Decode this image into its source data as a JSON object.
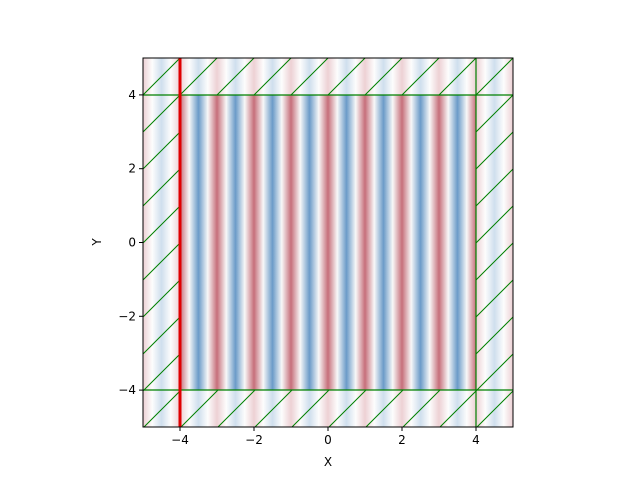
{
  "chart_data": {
    "type": "field",
    "xlabel": "X",
    "ylabel": "Y",
    "xlim": [
      -5,
      5
    ],
    "ylim": [
      -5,
      5
    ],
    "xticks": [
      {
        "value": -4,
        "label": "−4"
      },
      {
        "value": -2,
        "label": "−2"
      },
      0,
      2,
      4
    ],
    "yticks": [
      {
        "value": -4,
        "label": "−4"
      },
      {
        "value": -2,
        "label": "−2"
      },
      0,
      2,
      4
    ]
  }
}
